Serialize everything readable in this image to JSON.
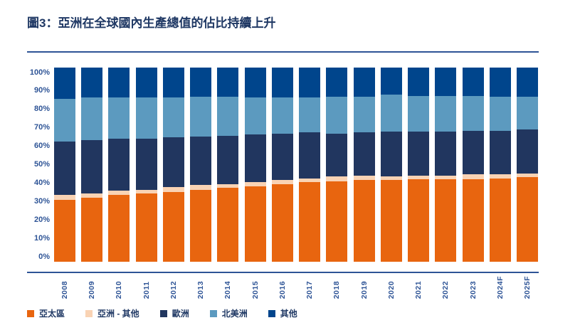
{
  "title": "圖3：亞洲在全球國內生產總值的佔比持續上升",
  "colors": {
    "title": "#1F3864",
    "axis": "#2E5496",
    "tick_labels": "#2E5496",
    "legend_text": "#1F3864"
  },
  "chart_data": {
    "type": "bar",
    "stacked": true,
    "unit": "%",
    "title": "圖3：亞洲在全球國內生產總值的佔比持續上升",
    "xlabel": "",
    "ylabel": "",
    "ylim": [
      0,
      100
    ],
    "grid": false,
    "legend_position": "bottom",
    "y_ticks": [
      "0%",
      "10%",
      "20%",
      "30%",
      "40%",
      "50%",
      "60%",
      "70%",
      "80%",
      "90%",
      "100%"
    ],
    "categories": [
      "2008",
      "2009",
      "2010",
      "2011",
      "2012",
      "2013",
      "2014",
      "2015",
      "2016",
      "2017",
      "2018",
      "2019",
      "2020",
      "2021",
      "2022",
      "2023",
      "2024F",
      "2025F"
    ],
    "series": [
      {
        "name": "亞太區",
        "color": "#E8650F",
        "values": [
          32,
          33,
          34.5,
          35,
          36,
          37,
          38,
          39,
          40,
          41,
          41.5,
          42,
          42,
          42.5,
          42.5,
          42.5,
          43,
          43.5
        ]
      },
      {
        "name": "亞洲 - 其他",
        "color": "#F9D3B4",
        "values": [
          2.5,
          2,
          2,
          2,
          2.5,
          2.5,
          2,
          2,
          2,
          2,
          2.5,
          2.5,
          2,
          2,
          2,
          2.5,
          2,
          2
        ]
      },
      {
        "name": "歐洲",
        "color": "#21365F",
        "values": [
          27.5,
          27.5,
          27,
          26.5,
          25.5,
          25,
          25,
          24.5,
          24,
          23.5,
          22,
          22,
          23,
          22.5,
          22.5,
          22.5,
          22.5,
          22.5
        ]
      },
      {
        "name": "北美洲",
        "color": "#5C9ABF",
        "values": [
          22,
          22,
          21,
          21,
          20.5,
          20.5,
          20,
          19,
          18.5,
          18,
          19,
          18.5,
          19,
          18.5,
          18.5,
          18,
          17.5,
          17
        ]
      },
      {
        "name": "其他",
        "color": "#00458C",
        "values": [
          16,
          15.5,
          15.5,
          15.5,
          15.5,
          15,
          15,
          15.5,
          15.5,
          15.5,
          15,
          15,
          14,
          14.5,
          14.5,
          14.5,
          15,
          15
        ]
      }
    ]
  }
}
